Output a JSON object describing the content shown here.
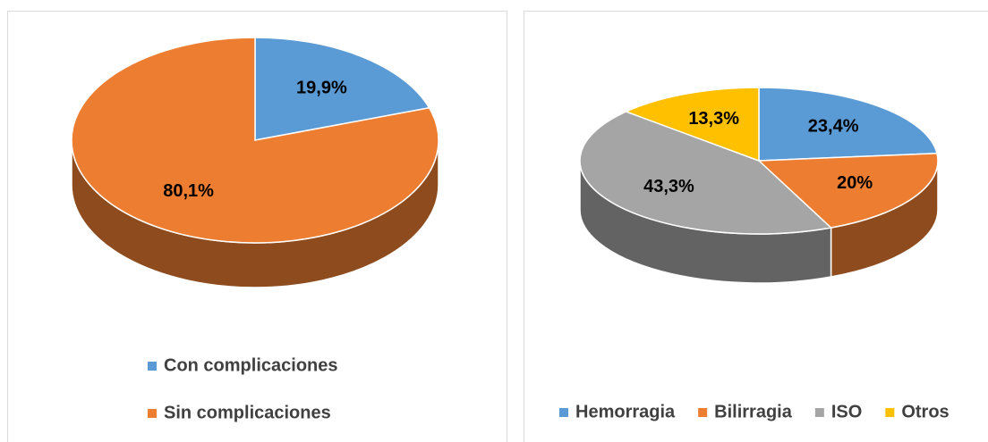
{
  "chart_data": [
    {
      "type": "pie",
      "categories": [
        "Con complicaciones",
        "Sin complicaciones"
      ],
      "values": [
        19.9,
        80.1
      ],
      "value_labels": [
        "19,9%",
        "80,1%"
      ],
      "colors": [
        "#5b9bd5",
        "#ed7d31"
      ],
      "legend": "bottom"
    },
    {
      "type": "pie",
      "categories": [
        "Hemorragia",
        "Bilirragia",
        "ISO",
        "Otros"
      ],
      "values": [
        23.4,
        20,
        43.3,
        13.3
      ],
      "value_labels": [
        "23,4%",
        "20%",
        "43,3%",
        "13,3%"
      ],
      "colors": [
        "#5b9bd5",
        "#ed7d31",
        "#a5a5a5",
        "#ffc000"
      ],
      "legend": "bottom"
    }
  ]
}
